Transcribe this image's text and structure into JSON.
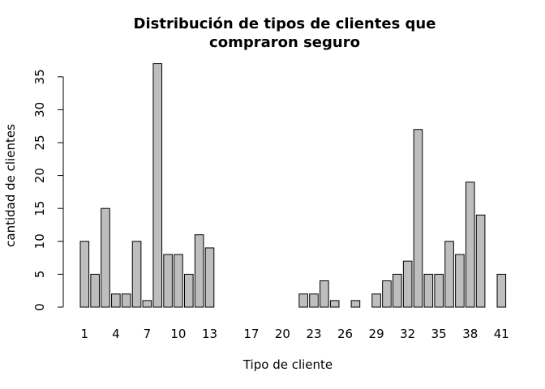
{
  "chart_data": {
    "type": "bar",
    "title": "Distribución de tipos de clientes que compraron seguro",
    "title_lines": [
      "Distribución de tipos de clientes que",
      "compraron seguro"
    ],
    "xlabel": "Tipo de cliente",
    "ylabel": "cantidad de clientes",
    "categories": [
      "1",
      "2",
      "3",
      "4",
      "5",
      "6",
      "7",
      "8",
      "9",
      "10",
      "11",
      "12",
      "13",
      "14",
      "15",
      "16",
      "17",
      "18",
      "19",
      "20",
      "21",
      "22",
      "23",
      "24",
      "25",
      "26",
      "27",
      "28",
      "29",
      "30",
      "31",
      "32",
      "33",
      "34",
      "35",
      "36",
      "37",
      "38",
      "39",
      "40",
      "41"
    ],
    "values": [
      10,
      5,
      15,
      2,
      2,
      10,
      1,
      37,
      8,
      8,
      5,
      11,
      9,
      0,
      0,
      0,
      0,
      0,
      0,
      0,
      0,
      2,
      2,
      4,
      1,
      0,
      1,
      0,
      2,
      4,
      5,
      7,
      27,
      5,
      5,
      10,
      8,
      19,
      14,
      0,
      5
    ],
    "x_tick_labels": [
      "1",
      "4",
      "7",
      "10",
      "13",
      "17",
      "20",
      "23",
      "26",
      "29",
      "32",
      "35",
      "38",
      "41"
    ],
    "y_ticks": [
      0,
      5,
      10,
      15,
      20,
      25,
      30,
      35
    ],
    "ylim": [
      0,
      37
    ],
    "grid": false,
    "bar_color": "#bebebe",
    "border_color": "#000000"
  }
}
